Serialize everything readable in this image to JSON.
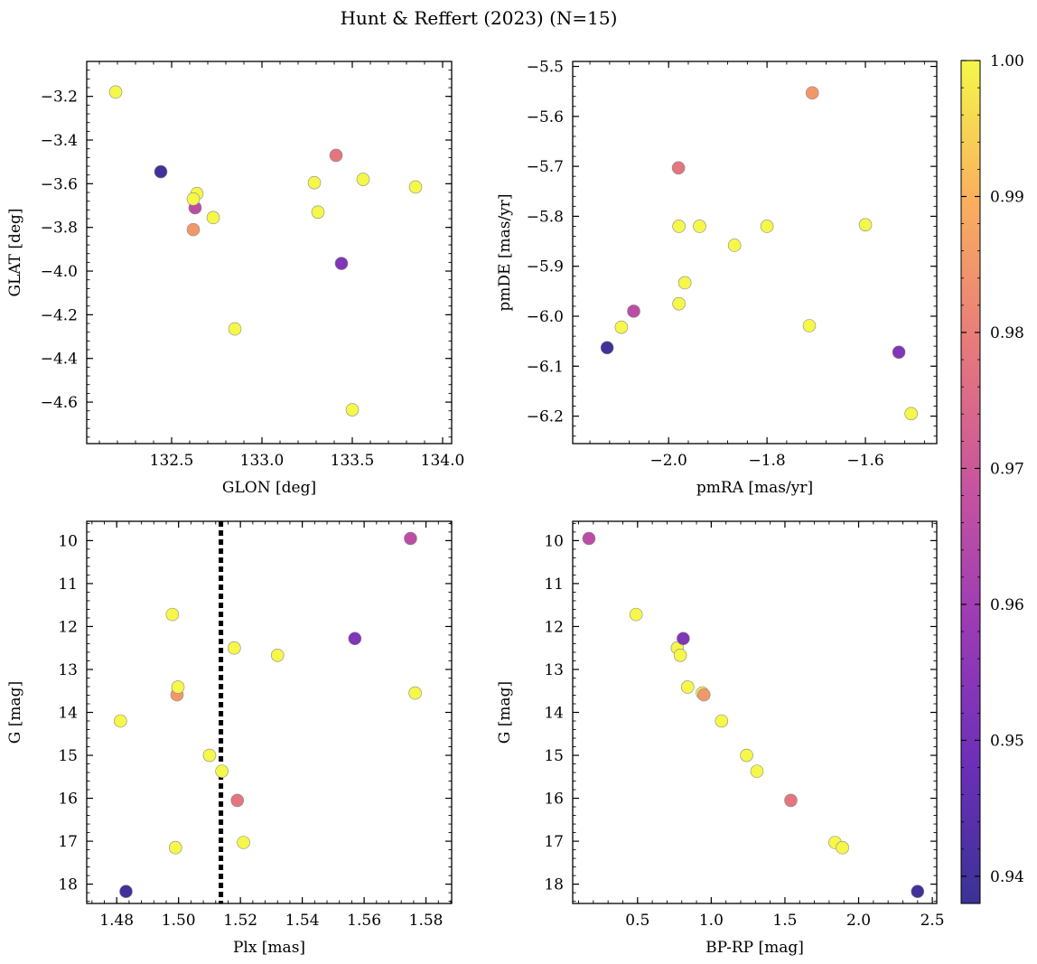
{
  "figure": {
    "title": "Hunt & Reffert (2023) (N=15)"
  },
  "colors": {
    "marker_edge": "#8a8a8a",
    "vline": "#000000",
    "colormap": "plasma"
  },
  "colorbar": {
    "min": 0.938,
    "max": 1.0,
    "ticks": [
      "0.94",
      "0.95",
      "0.96",
      "0.97",
      "0.98",
      "0.99",
      "1.00"
    ],
    "tick_values": [
      0.94,
      0.95,
      0.96,
      0.97,
      0.98,
      0.99,
      1.0
    ]
  },
  "chart_data": [
    {
      "type": "scatter",
      "xlabel": "GLON [deg]",
      "ylabel": "GLAT [deg]",
      "xlim": [
        132.03,
        134.05
      ],
      "ylim": [
        -4.79,
        -3.04
      ],
      "xticks": [
        132.5,
        133.0,
        133.5,
        134.0
      ],
      "xticklabels": [
        "132.5",
        "133.0",
        "133.5",
        "134.0"
      ],
      "yticks": [
        -3.2,
        -3.4,
        -3.6,
        -3.8,
        -4.0,
        -4.2,
        -4.4,
        -4.6
      ],
      "yticklabels": [
        "−3.2",
        "−3.4",
        "−3.6",
        "−3.8",
        "−4.0",
        "−4.2",
        "−4.4",
        "−4.6"
      ],
      "invert_y": false,
      "points": [
        {
          "x": 132.19,
          "y": -3.18,
          "c": 1.0
        },
        {
          "x": 132.44,
          "y": -3.545,
          "c": 0.939
        },
        {
          "x": 132.63,
          "y": -3.71,
          "c": 0.966
        },
        {
          "x": 132.64,
          "y": -3.645,
          "c": 1.0
        },
        {
          "x": 132.62,
          "y": -3.67,
          "c": 1.0
        },
        {
          "x": 132.62,
          "y": -3.81,
          "c": 0.985
        },
        {
          "x": 132.73,
          "y": -3.755,
          "c": 1.0
        },
        {
          "x": 132.85,
          "y": -4.265,
          "c": 1.0
        },
        {
          "x": 133.29,
          "y": -3.595,
          "c": 1.0
        },
        {
          "x": 133.31,
          "y": -3.73,
          "c": 1.0
        },
        {
          "x": 133.41,
          "y": -3.47,
          "c": 0.978
        },
        {
          "x": 133.44,
          "y": -3.965,
          "c": 0.953
        },
        {
          "x": 133.5,
          "y": -4.635,
          "c": 1.0
        },
        {
          "x": 133.56,
          "y": -3.58,
          "c": 1.0
        },
        {
          "x": 133.85,
          "y": -3.615,
          "c": 1.0
        }
      ]
    },
    {
      "type": "scatter",
      "xlabel": "pmRA [mas/yr]",
      "ylabel": "pmDE [mas/yr]",
      "xlim": [
        -2.195,
        -1.455
      ],
      "ylim": [
        -6.255,
        -5.49
      ],
      "xticks": [
        -2.0,
        -1.8,
        -1.6
      ],
      "xticklabels": [
        "−2.0",
        "−1.8",
        "−1.6"
      ],
      "yticks": [
        -5.5,
        -5.6,
        -5.7,
        -5.8,
        -5.9,
        -6.0,
        -6.1,
        -6.2
      ],
      "yticklabels": [
        "−5.5",
        "−5.6",
        "−5.7",
        "−5.8",
        "−5.9",
        "−6.0",
        "−6.1",
        "−6.2"
      ],
      "invert_y": false,
      "points": [
        {
          "x": -2.125,
          "y": -6.063,
          "c": 0.939
        },
        {
          "x": -2.096,
          "y": -6.022,
          "c": 1.0
        },
        {
          "x": -2.071,
          "y": -5.99,
          "c": 0.966
        },
        {
          "x": -1.98,
          "y": -5.703,
          "c": 0.978
        },
        {
          "x": -1.979,
          "y": -5.82,
          "c": 1.0
        },
        {
          "x": -1.979,
          "y": -5.975,
          "c": 1.0
        },
        {
          "x": -1.967,
          "y": -5.933,
          "c": 1.0
        },
        {
          "x": -1.937,
          "y": -5.82,
          "c": 1.0
        },
        {
          "x": -1.866,
          "y": -5.858,
          "c": 1.0
        },
        {
          "x": -1.8,
          "y": -5.82,
          "c": 1.0
        },
        {
          "x": -1.714,
          "y": -6.019,
          "c": 1.0
        },
        {
          "x": -1.708,
          "y": -5.553,
          "c": 0.985
        },
        {
          "x": -1.6,
          "y": -5.817,
          "c": 1.0
        },
        {
          "x": -1.532,
          "y": -6.072,
          "c": 0.953
        },
        {
          "x": -1.507,
          "y": -6.195,
          "c": 1.0
        }
      ]
    },
    {
      "type": "scatter",
      "xlabel": "Plx [mas]",
      "ylabel": "G [mag]",
      "xlim": [
        1.4703,
        1.5883
      ],
      "ylim": [
        9.55,
        18.45
      ],
      "xticks": [
        1.48,
        1.5,
        1.52,
        1.54,
        1.56,
        1.58
      ],
      "xticklabels": [
        "1.48",
        "1.50",
        "1.52",
        "1.54",
        "1.56",
        "1.58"
      ],
      "yticks": [
        10,
        11,
        12,
        13,
        14,
        15,
        16,
        17,
        18
      ],
      "yticklabels": [
        "10",
        "11",
        "12",
        "13",
        "14",
        "15",
        "16",
        "17",
        "18"
      ],
      "invert_y": true,
      "vline": 1.5137,
      "points": [
        {
          "x": 1.4812,
          "y": 14.2,
          "c": 1.0
        },
        {
          "x": 1.483,
          "y": 18.17,
          "c": 0.939
        },
        {
          "x": 1.498,
          "y": 11.72,
          "c": 1.0
        },
        {
          "x": 1.499,
          "y": 17.15,
          "c": 1.0
        },
        {
          "x": 1.4995,
          "y": 13.59,
          "c": 0.985
        },
        {
          "x": 1.4998,
          "y": 13.41,
          "c": 1.0
        },
        {
          "x": 1.51,
          "y": 15.0,
          "c": 1.0
        },
        {
          "x": 1.514,
          "y": 15.37,
          "c": 1.0
        },
        {
          "x": 1.518,
          "y": 12.5,
          "c": 1.0
        },
        {
          "x": 1.519,
          "y": 16.05,
          "c": 0.978
        },
        {
          "x": 1.521,
          "y": 17.03,
          "c": 1.0
        },
        {
          "x": 1.532,
          "y": 12.67,
          "c": 1.0
        },
        {
          "x": 1.557,
          "y": 12.28,
          "c": 0.953
        },
        {
          "x": 1.575,
          "y": 9.95,
          "c": 0.966
        },
        {
          "x": 1.5765,
          "y": 13.55,
          "c": 1.0
        }
      ]
    },
    {
      "type": "scatter",
      "xlabel": "BP-RP [mag]",
      "ylabel": "G [mag]",
      "xlim": [
        0.06,
        2.53
      ],
      "ylim": [
        9.55,
        18.45
      ],
      "xticks": [
        0.5,
        1.0,
        1.5,
        2.0,
        2.5
      ],
      "xticklabels": [
        "0.5",
        "1.0",
        "1.5",
        "2.0",
        "2.5"
      ],
      "yticks": [
        10,
        11,
        12,
        13,
        14,
        15,
        16,
        17,
        18
      ],
      "yticklabels": [
        "10",
        "11",
        "12",
        "13",
        "14",
        "15",
        "16",
        "17",
        "18"
      ],
      "invert_y": true,
      "points": [
        {
          "x": 0.17,
          "y": 9.95,
          "c": 0.966
        },
        {
          "x": 0.49,
          "y": 11.72,
          "c": 1.0
        },
        {
          "x": 0.77,
          "y": 12.5,
          "c": 1.0
        },
        {
          "x": 0.79,
          "y": 12.67,
          "c": 1.0
        },
        {
          "x": 0.81,
          "y": 12.28,
          "c": 0.953
        },
        {
          "x": 0.84,
          "y": 13.41,
          "c": 1.0
        },
        {
          "x": 0.94,
          "y": 13.55,
          "c": 1.0
        },
        {
          "x": 0.95,
          "y": 13.59,
          "c": 0.985
        },
        {
          "x": 1.07,
          "y": 14.2,
          "c": 1.0
        },
        {
          "x": 1.24,
          "y": 15.0,
          "c": 1.0
        },
        {
          "x": 1.31,
          "y": 15.37,
          "c": 1.0
        },
        {
          "x": 1.54,
          "y": 16.05,
          "c": 0.978
        },
        {
          "x": 1.84,
          "y": 17.03,
          "c": 1.0
        },
        {
          "x": 1.89,
          "y": 17.15,
          "c": 1.0
        },
        {
          "x": 2.4,
          "y": 18.17,
          "c": 0.939
        }
      ]
    }
  ]
}
